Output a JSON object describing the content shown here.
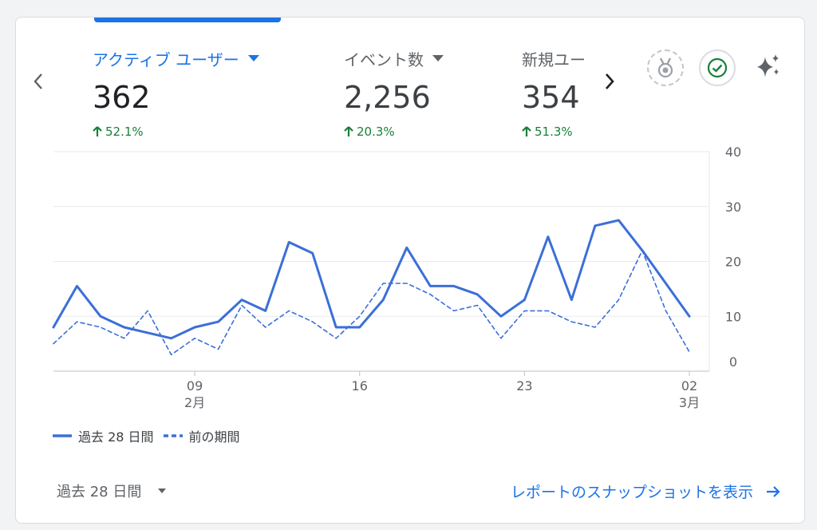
{
  "metrics": [
    {
      "label": "アクティブ ユーザー",
      "value": "362",
      "change": "52.1%"
    },
    {
      "label": "イベント数",
      "value": "2,256",
      "change": "20.3%"
    },
    {
      "label": "新規ユー",
      "value": "354",
      "change": "51.3%"
    }
  ],
  "icons": {
    "prev": "chevron-left-icon",
    "next": "chevron-right-icon",
    "medal": "medal-icon",
    "check": "check-circle-icon",
    "sparkle": "sparkle-icon"
  },
  "colors": {
    "accent": "#1a73e8",
    "positive": "#188038",
    "series": "#3b6fd8"
  },
  "legend": {
    "current": "過去 28 日間",
    "previous": "前の期間"
  },
  "footer": {
    "range": "過去 28 日間",
    "link": "レポートのスナップショットを表示"
  },
  "chart_data": {
    "type": "line",
    "x_tick_labels": [
      {
        "day": "09",
        "month": "2月"
      },
      {
        "day": "16",
        "month": ""
      },
      {
        "day": "23",
        "month": ""
      },
      {
        "day": "02",
        "month": "3月"
      }
    ],
    "x_tick_indices": [
      6,
      13,
      20,
      27
    ],
    "ylim": [
      0,
      40
    ],
    "y_ticks": [
      0,
      10,
      20,
      30,
      40
    ],
    "grid": true,
    "series": [
      {
        "name": "過去 28 日間",
        "style": "solid",
        "values": [
          8,
          15.5,
          10,
          8,
          7,
          6,
          8,
          9,
          13,
          11,
          23.5,
          21.5,
          8,
          8,
          13,
          22.5,
          15.5,
          15.5,
          14,
          10,
          13,
          24.5,
          13,
          26.5,
          27.5,
          22,
          16,
          10
        ]
      },
      {
        "name": "前の期間",
        "style": "dashed",
        "values": [
          5,
          9,
          8,
          6,
          11,
          3,
          6,
          4,
          12,
          8,
          11,
          9,
          6,
          10,
          16,
          16,
          14,
          11,
          12,
          6,
          11,
          11,
          9,
          8,
          13,
          22,
          11,
          3.5
        ]
      }
    ]
  }
}
